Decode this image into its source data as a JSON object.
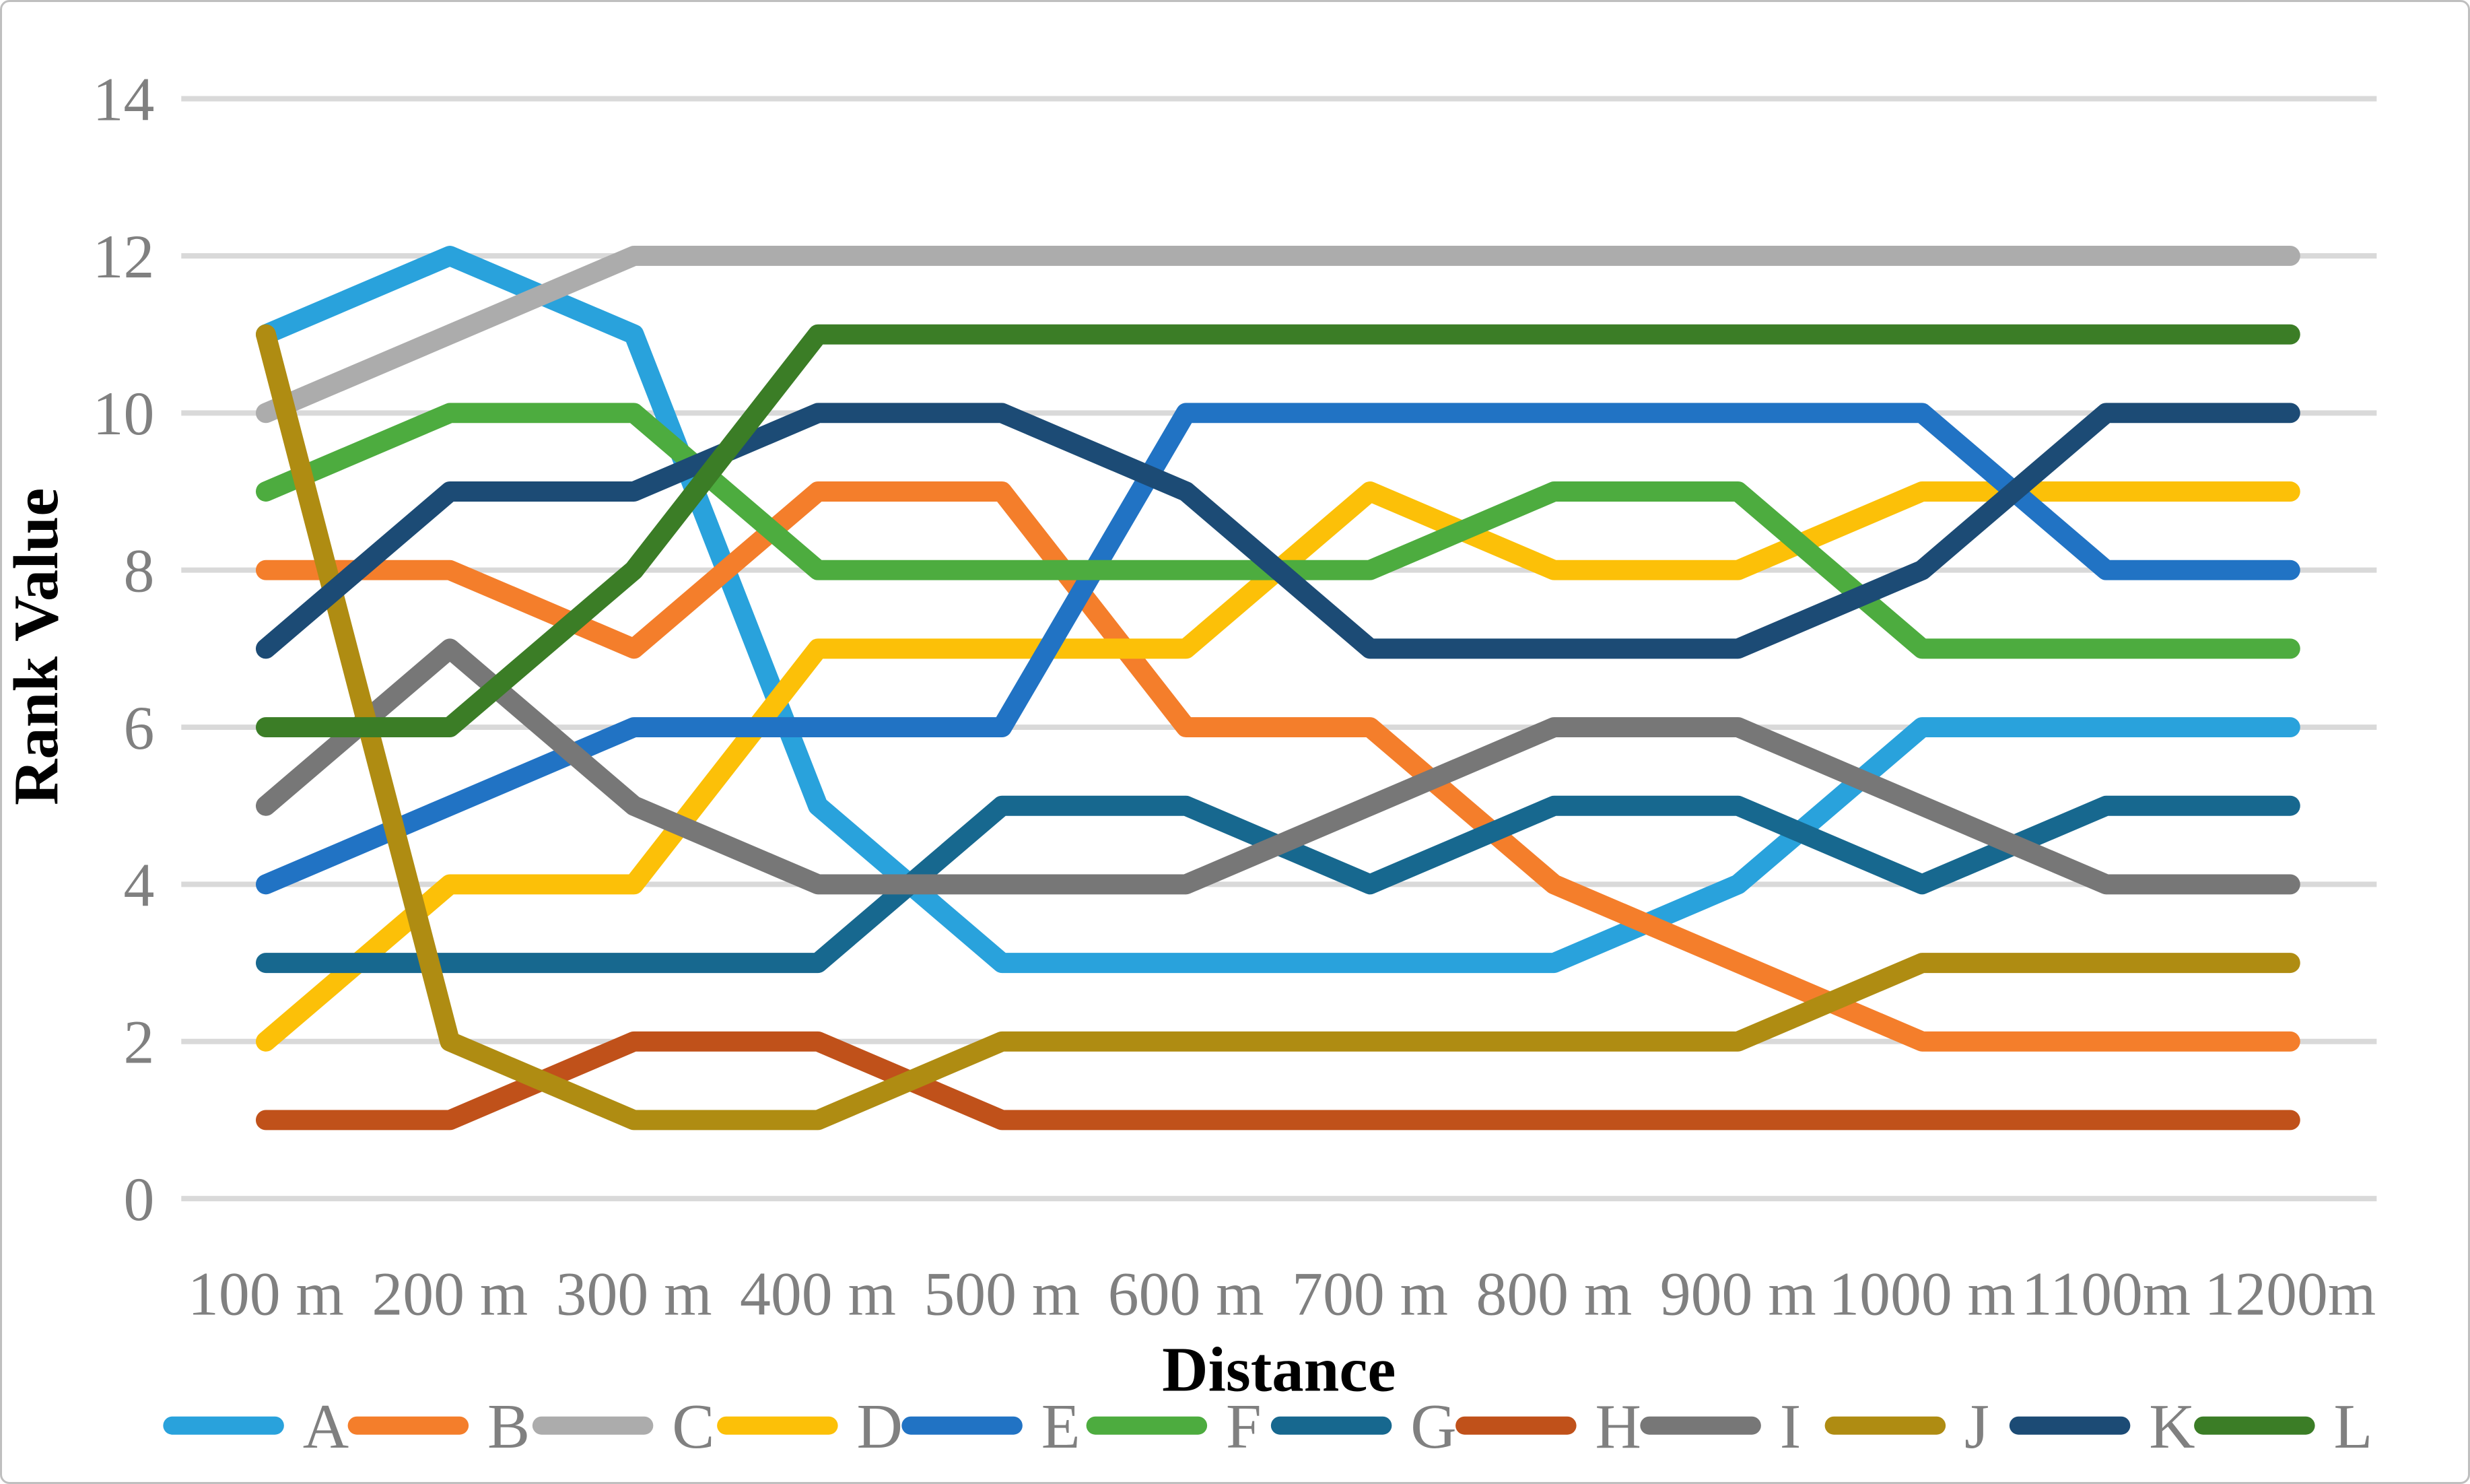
{
  "figure": {
    "background": "#FFFFFF",
    "border_color": "#BFBFBF"
  },
  "chart_data": {
    "type": "line",
    "title": "",
    "xlabel": "Distance",
    "ylabel": "Rank Value",
    "categories": [
      "100 m",
      "200 m",
      "300 m",
      "400 m",
      "500 m",
      "600 m",
      "700 m",
      "800 m",
      "900 m",
      "1000 m",
      "1100m",
      "1200m"
    ],
    "ylim": [
      0,
      14
    ],
    "yticks": [
      0,
      2,
      4,
      6,
      8,
      10,
      12,
      14
    ],
    "grid": "horizontal",
    "gridline_color": "#D9D9D9",
    "axis_text_color": "#808080",
    "axis_title_color": "#595959",
    "legend_position": "bottom",
    "legend_text_color": "#808080",
    "series": [
      {
        "name": "A",
        "color": "#29A2DC",
        "values": [
          11,
          12,
          11,
          5,
          3,
          3,
          3,
          3,
          4,
          6,
          6,
          6
        ]
      },
      {
        "name": "B",
        "color": "#F47E2B",
        "values": [
          8,
          8,
          7,
          9,
          9,
          6,
          6,
          4,
          3,
          2,
          2,
          2
        ]
      },
      {
        "name": "C",
        "color": "#ACACAC",
        "values": [
          10,
          11,
          12,
          12,
          12,
          12,
          12,
          12,
          12,
          12,
          12,
          12
        ]
      },
      {
        "name": "D",
        "color": "#FCC008",
        "values": [
          2,
          4,
          4,
          7,
          7,
          7,
          9,
          8,
          8,
          9,
          9,
          9
        ]
      },
      {
        "name": "E",
        "color": "#2173C4",
        "values": [
          4,
          5,
          6,
          6,
          6,
          10,
          10,
          10,
          10,
          10,
          8,
          8
        ]
      },
      {
        "name": "F",
        "color": "#4DAC3F",
        "values": [
          9,
          10,
          10,
          8,
          8,
          8,
          8,
          9,
          9,
          7,
          7,
          7
        ]
      },
      {
        "name": "G",
        "color": "#17688F",
        "values": [
          3,
          3,
          3,
          3,
          5,
          5,
          4,
          5,
          5,
          4,
          5,
          5
        ]
      },
      {
        "name": "H",
        "color": "#C0511A",
        "values": [
          1,
          1,
          2,
          2,
          1,
          1,
          1,
          1,
          1,
          1,
          1,
          1
        ]
      },
      {
        "name": "I",
        "color": "#777777",
        "values": [
          5,
          7,
          5,
          4,
          4,
          4,
          5,
          6,
          6,
          5,
          4,
          4
        ]
      },
      {
        "name": "J",
        "color": "#AF8C12",
        "values": [
          11,
          2,
          1,
          1,
          2,
          2,
          2,
          2,
          2,
          3,
          3,
          3
        ]
      },
      {
        "name": "K",
        "color": "#1C4B75",
        "values": [
          7,
          9,
          9,
          10,
          10,
          9,
          7,
          7,
          7,
          8,
          10,
          10
        ]
      },
      {
        "name": "L",
        "color": "#3B7D26",
        "values": [
          6,
          6,
          8,
          11,
          11,
          11,
          11,
          11,
          11,
          11,
          11,
          11
        ]
      }
    ]
  }
}
